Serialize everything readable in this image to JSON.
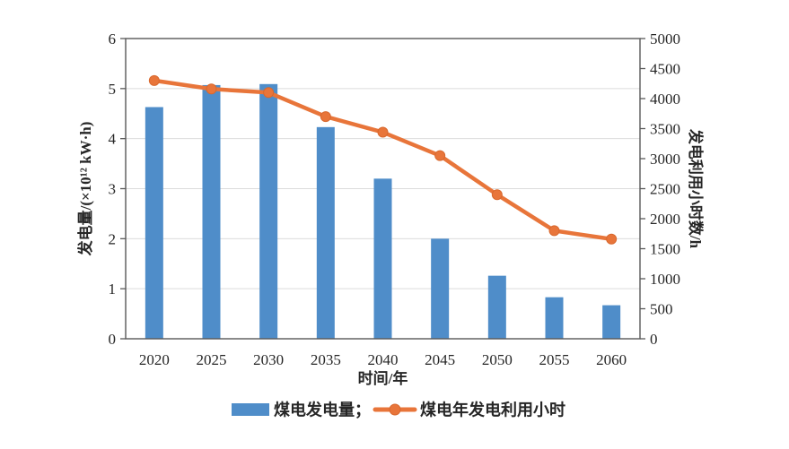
{
  "style": {
    "background": "#ffffff",
    "bar_color": "#4f8dc9",
    "line_color": "#e8753a",
    "marker_edge_color": "#d8682e",
    "grid_color": "#dcdcdc",
    "frame_color": "#595959",
    "text_color": "#262626"
  },
  "chart_data": {
    "type": "bar+line",
    "categories": [
      "2020",
      "2025",
      "2030",
      "2035",
      "2040",
      "2045",
      "2050",
      "2055",
      "2060"
    ],
    "series": [
      {
        "name": "煤电发电量",
        "type": "bar",
        "axis": "left",
        "values": [
          4.63,
          5.07,
          5.09,
          4.23,
          3.2,
          2.0,
          1.26,
          0.83,
          0.67
        ]
      },
      {
        "name": "煤电年发电利用小时",
        "type": "line",
        "axis": "right",
        "values": [
          4300,
          4160,
          4100,
          3700,
          3440,
          3050,
          2400,
          1800,
          1660
        ]
      }
    ],
    "x_axis": {
      "label": "时间/年"
    },
    "left_axis": {
      "label": "发电量/(×10¹² kW·h)",
      "min": 0,
      "max": 6,
      "ticks": [
        0,
        1,
        2,
        3,
        4,
        5,
        6
      ]
    },
    "right_axis": {
      "label": "发电利用小时数/h",
      "min": 0,
      "max": 5000,
      "ticks": [
        0,
        500,
        1000,
        1500,
        2000,
        2500,
        3000,
        3500,
        4000,
        4500,
        5000
      ]
    },
    "legend": [
      {
        "label": "煤电发电量；",
        "swatch": "bar"
      },
      {
        "label": "煤电年发电利用小时",
        "swatch": "line"
      }
    ],
    "grid": "horizontal lines at left-axis integers 1-5",
    "legend_position": "bottom-center"
  }
}
